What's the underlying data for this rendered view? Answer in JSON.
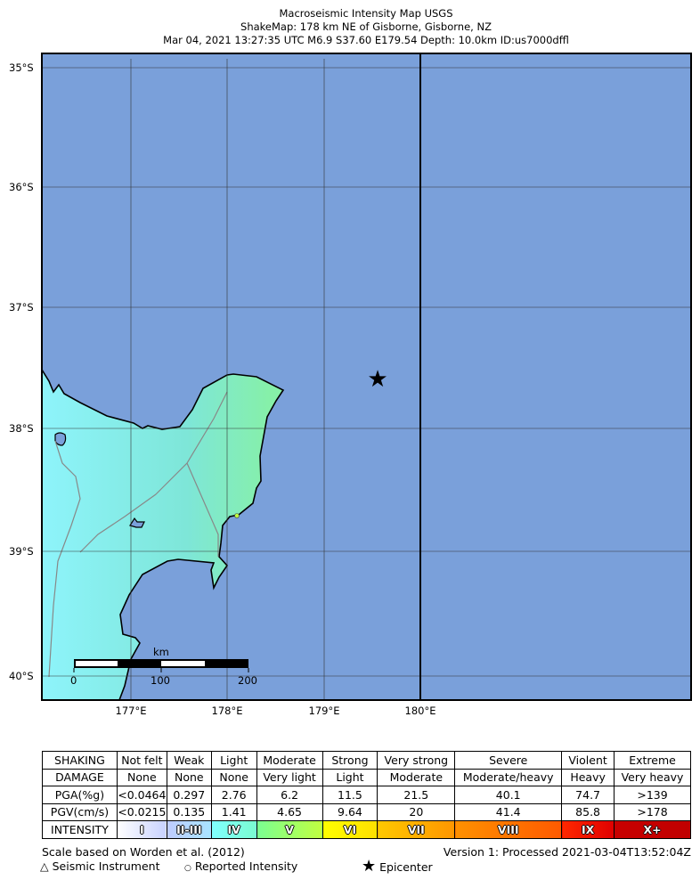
{
  "title": {
    "line1": "Macroseismic Intensity Map USGS",
    "line2": "ShakeMap: 178 km NE of Gisborne, Gisborne, NZ",
    "line3": "Mar 04, 2021 13:27:35 UTC M6.9 S37.60 E179.54 Depth: 10.0km ID:us7000dffl"
  },
  "map": {
    "lat_labels": [
      "35°S",
      "36°S",
      "37°S",
      "38°S",
      "39°S",
      "40°S"
    ],
    "lon_labels": [
      "177°E",
      "178°E",
      "179°E",
      "180°E"
    ],
    "ocean_color": "#7aa0da",
    "land_color": "#8ef0f0",
    "scale_bar": {
      "unit": "km",
      "ticks": [
        "0",
        "100",
        "200"
      ]
    },
    "epicenter": {
      "lat": -37.6,
      "lon": 179.54,
      "icon": "star-icon"
    }
  },
  "legend": {
    "rows": [
      {
        "header": "SHAKING",
        "cells": [
          "Not felt",
          "Weak",
          "Light",
          "Moderate",
          "Strong",
          "Very strong",
          "Severe",
          "Violent",
          "Extreme"
        ]
      },
      {
        "header": "DAMAGE",
        "cells": [
          "None",
          "None",
          "None",
          "Very light",
          "Light",
          "Moderate",
          "Moderate/heavy",
          "Heavy",
          "Very heavy"
        ]
      },
      {
        "header": "PGA(%g)",
        "cells": [
          "<0.0464",
          "0.297",
          "2.76",
          "6.2",
          "11.5",
          "21.5",
          "40.1",
          "74.7",
          ">139"
        ]
      },
      {
        "header": "PGV(cm/s)",
        "cells": [
          "<0.0215",
          "0.135",
          "1.41",
          "4.65",
          "9.64",
          "20",
          "41.4",
          "85.8",
          ">178"
        ]
      }
    ],
    "intensity": {
      "header": "INTENSITY",
      "levels": [
        {
          "label": "I",
          "colors": [
            "#ffffff",
            "#c8d2ff"
          ]
        },
        {
          "label": "II-III",
          "colors": [
            "#bfccff",
            "#a8e4ff"
          ]
        },
        {
          "label": "IV",
          "colors": [
            "#80ffff",
            "#7afcd0"
          ]
        },
        {
          "label": "V",
          "colors": [
            "#7aff93",
            "#c0ff40"
          ]
        },
        {
          "label": "VI",
          "colors": [
            "#ffff00",
            "#ffe000"
          ]
        },
        {
          "label": "VII",
          "colors": [
            "#ffc800",
            "#ff9600"
          ]
        },
        {
          "label": "VIII",
          "colors": [
            "#ff9100",
            "#ff5a00"
          ]
        },
        {
          "label": "IX",
          "colors": [
            "#ff2800",
            "#e00000"
          ]
        },
        {
          "label": "X+",
          "colors": [
            "#c80000",
            "#c00000"
          ]
        }
      ]
    }
  },
  "footer": {
    "scale_note": "Scale based on Worden et al. (2012)",
    "version": "Version 1: Processed 2021-03-04T13:52:04Z",
    "seismic_instrument": "Seismic Instrument",
    "reported_intensity": "Reported Intensity",
    "epicenter": "Epicenter"
  }
}
